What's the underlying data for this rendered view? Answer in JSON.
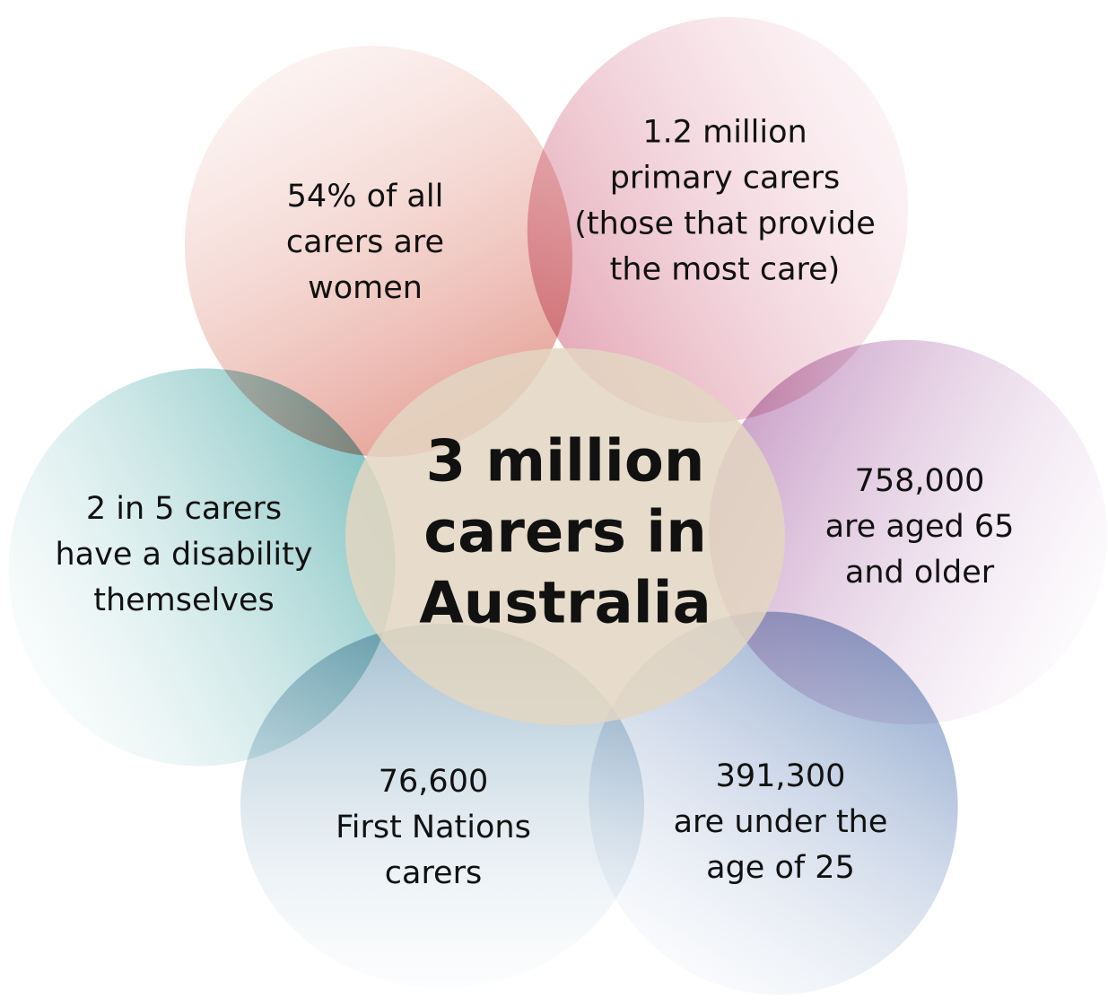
{
  "center": {
    "lines": [
      "3 million",
      "carers in",
      "Australia"
    ]
  },
  "petals": [
    {
      "lines": [
        "54% of all",
        "carers are",
        "women"
      ]
    },
    {
      "lines": [
        "1.2 million",
        "primary carers",
        "(those that provide",
        "the most care)"
      ]
    },
    {
      "lines": [
        "758,000",
        "are aged 65",
        "and older"
      ]
    },
    {
      "lines": [
        "391,300",
        "are under the",
        "age of 25"
      ]
    },
    {
      "lines": [
        "76,600",
        "First Nations",
        "carers"
      ]
    },
    {
      "lines": [
        "2 in 5 carers",
        "have a disability",
        "themselves"
      ]
    }
  ]
}
